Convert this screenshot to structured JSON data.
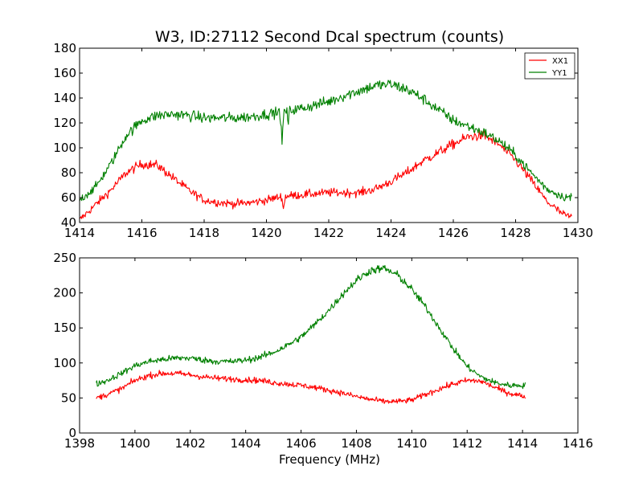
{
  "chart_data": [
    {
      "type": "line",
      "title": "W3, ID:27112 Second Dcal spectrum (counts)",
      "xlabel": "",
      "ylabel": "",
      "xlim": [
        1414,
        1430
      ],
      "ylim": [
        40,
        180
      ],
      "xticks": [
        1414,
        1416,
        1418,
        1420,
        1422,
        1424,
        1426,
        1428,
        1430
      ],
      "yticks": [
        40,
        60,
        80,
        100,
        120,
        140,
        160,
        180
      ],
      "legend": "top-right",
      "series": [
        {
          "name": "XX1",
          "color": "#ff0000",
          "x": [
            1414.0,
            1414.5,
            1415.0,
            1415.5,
            1416.0,
            1416.5,
            1417.0,
            1417.5,
            1418.0,
            1418.5,
            1419.0,
            1419.5,
            1420.0,
            1420.5,
            1421.0,
            1421.5,
            1422.0,
            1422.5,
            1423.0,
            1423.5,
            1424.0,
            1424.5,
            1425.0,
            1425.5,
            1426.0,
            1426.5,
            1427.0,
            1427.5,
            1428.0,
            1428.5,
            1429.0,
            1429.5,
            1429.8
          ],
          "y": [
            42,
            54,
            66,
            80,
            87,
            86,
            76,
            66,
            58,
            56,
            55,
            56,
            58,
            61,
            62,
            63,
            64,
            64,
            64,
            67,
            73,
            80,
            89,
            96,
            103,
            109,
            110,
            102,
            90,
            74,
            57,
            47,
            44
          ]
        },
        {
          "name": "YY1",
          "color": "#008000",
          "x": [
            1414.0,
            1414.5,
            1415.0,
            1415.5,
            1416.0,
            1416.5,
            1417.0,
            1417.5,
            1418.0,
            1418.5,
            1419.0,
            1419.5,
            1420.0,
            1420.5,
            1421.0,
            1421.5,
            1422.0,
            1422.5,
            1423.0,
            1423.5,
            1424.0,
            1424.5,
            1425.0,
            1425.5,
            1426.0,
            1426.5,
            1427.0,
            1427.5,
            1428.0,
            1428.5,
            1429.0,
            1429.5,
            1429.8
          ],
          "y": [
            58,
            68,
            87,
            110,
            122,
            126,
            127,
            126,
            124,
            124,
            124,
            125,
            127,
            129,
            131,
            134,
            137,
            142,
            146,
            150,
            151,
            147,
            140,
            131,
            122,
            117,
            112,
            105,
            94,
            80,
            67,
            61,
            60
          ]
        }
      ],
      "annotations": [
        {
          "series": "YY1",
          "x": 1420.5,
          "y": 100,
          "note": "narrow dip"
        }
      ]
    },
    {
      "type": "line",
      "title": "",
      "xlabel": "Frequency (MHz)",
      "ylabel": "",
      "xlim": [
        1398,
        1416
      ],
      "ylim": [
        0,
        250
      ],
      "xticks": [
        1398,
        1400,
        1402,
        1404,
        1406,
        1408,
        1410,
        1412,
        1414,
        1416
      ],
      "yticks": [
        0,
        50,
        100,
        150,
        200,
        250
      ],
      "series": [
        {
          "name": "XX1",
          "color": "#ff0000",
          "x": [
            1398.6,
            1399.0,
            1399.5,
            1400.0,
            1400.5,
            1401.0,
            1401.5,
            1402.0,
            1402.5,
            1403.0,
            1403.5,
            1404.0,
            1404.5,
            1405.0,
            1405.5,
            1406.0,
            1406.5,
            1407.0,
            1407.5,
            1408.0,
            1408.5,
            1409.0,
            1409.5,
            1410.0,
            1410.5,
            1411.0,
            1411.5,
            1412.0,
            1412.5,
            1413.0,
            1413.5,
            1414.1
          ],
          "y": [
            50,
            55,
            63,
            75,
            82,
            85,
            85,
            83,
            80,
            78,
            77,
            76,
            75,
            72,
            70,
            68,
            65,
            61,
            57,
            52,
            48,
            45,
            45,
            47,
            55,
            63,
            70,
            75,
            74,
            65,
            57,
            52
          ]
        },
        {
          "name": "YY1",
          "color": "#008000",
          "x": [
            1398.6,
            1399.0,
            1399.5,
            1400.0,
            1400.5,
            1401.0,
            1401.5,
            1402.0,
            1402.5,
            1403.0,
            1403.5,
            1404.0,
            1404.5,
            1405.0,
            1405.5,
            1406.0,
            1406.5,
            1407.0,
            1407.5,
            1408.0,
            1408.5,
            1409.0,
            1409.5,
            1410.0,
            1410.5,
            1411.0,
            1411.5,
            1412.0,
            1412.5,
            1413.0,
            1413.5,
            1414.1
          ],
          "y": [
            70,
            75,
            85,
            96,
            102,
            105,
            107,
            107,
            104,
            102,
            102,
            104,
            108,
            115,
            125,
            137,
            155,
            175,
            198,
            218,
            232,
            235,
            225,
            205,
            180,
            150,
            120,
            95,
            80,
            72,
            68,
            68
          ]
        }
      ]
    }
  ]
}
